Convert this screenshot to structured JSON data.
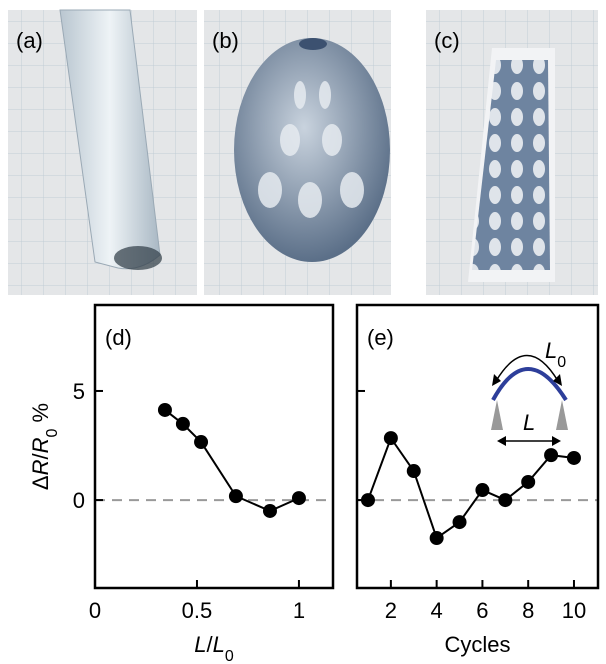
{
  "photos": {
    "labels": [
      "(a)",
      "(b)",
      "(c)"
    ]
  },
  "chart_data": [
    {
      "type": "line",
      "panel_label": "(d)",
      "ylabel": [
        "Δ",
        "R",
        "/",
        "R",
        "0",
        " %"
      ],
      "xlabel": [
        "L",
        "/",
        "L",
        "0"
      ],
      "x": [
        0.343,
        0.431,
        0.52,
        0.691,
        0.858,
        1.0
      ],
      "series": [
        {
          "color": "#000000",
          "values": [
            4.13,
            3.49,
            2.66,
            0.18,
            -0.5,
            0.09
          ]
        }
      ],
      "xlim": [
        0,
        1.167
      ],
      "ylim": [
        -4.03,
        8.94
      ],
      "xticks": [
        0,
        0.5,
        1
      ],
      "yticks": [
        0,
        5
      ],
      "show_ytick_labels": true,
      "reference_line": 0
    },
    {
      "type": "line",
      "panel_label": "(e)",
      "xlabel": [
        "Cycles"
      ],
      "x": [
        1,
        2,
        3,
        4,
        5,
        6,
        7,
        8,
        9,
        10
      ],
      "series": [
        {
          "color": "#000000",
          "values": [
            0,
            2.84,
            1.33,
            -1.74,
            -1.01,
            0.46,
            0,
            0.83,
            2.06,
            1.93
          ]
        }
      ],
      "xlim": [
        0.52,
        11.05
      ],
      "ylim": [
        -4.03,
        8.94
      ],
      "xticks": [
        2,
        4,
        6,
        8,
        10
      ],
      "yticks": [
        0,
        5
      ],
      "show_ytick_labels": false,
      "reference_line": 0,
      "annotations": {
        "arc_label": [
          "L",
          "0"
        ],
        "span_label": "L"
      }
    }
  ]
}
